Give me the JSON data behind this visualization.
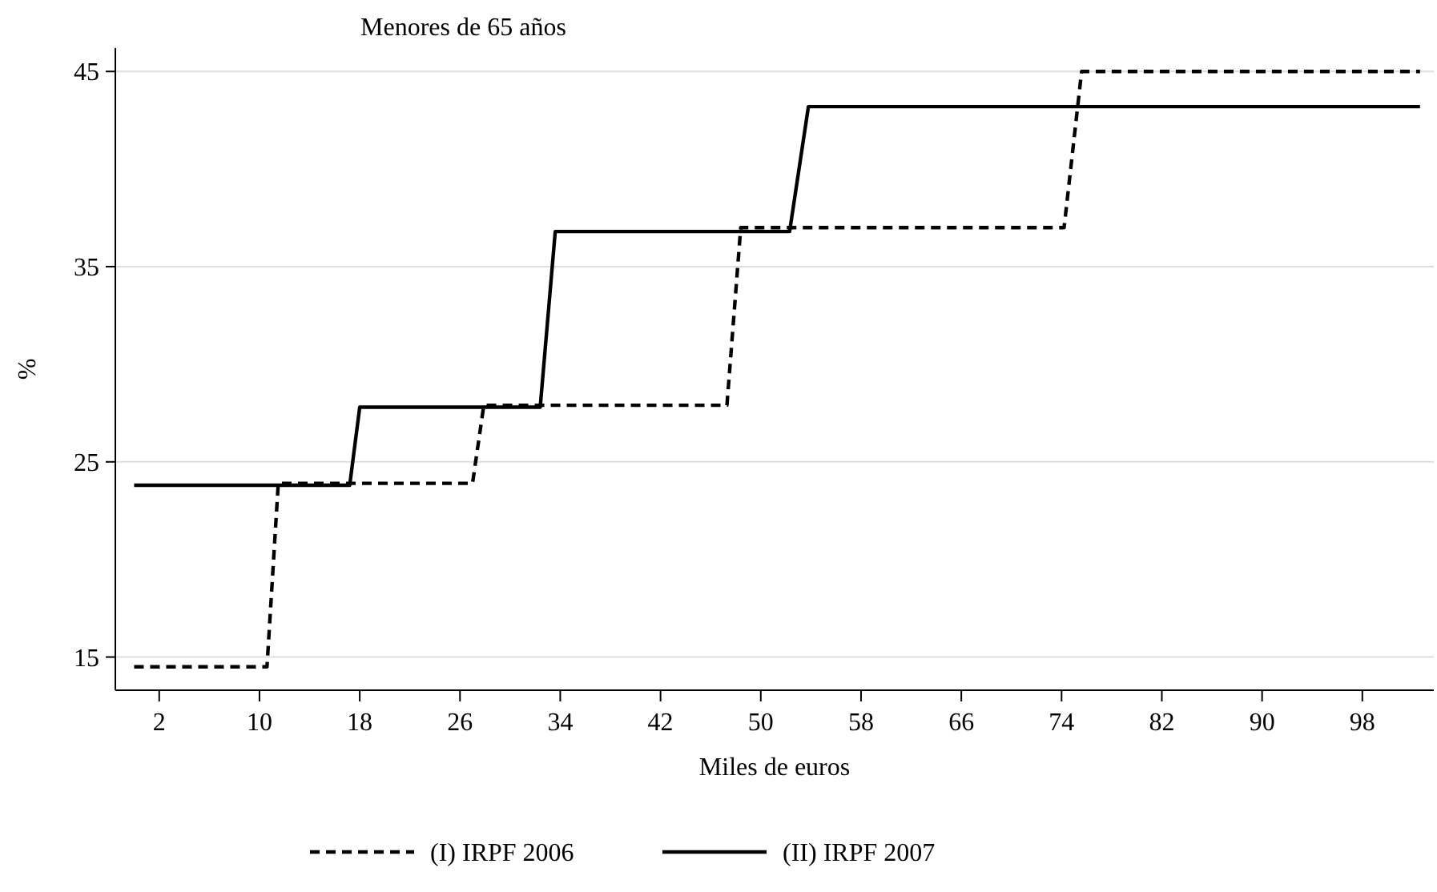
{
  "chart_data": {
    "type": "line",
    "title": "Menores de 65 años",
    "xlabel": "Miles de euros",
    "ylabel": "%",
    "xlim": [
      -1.5,
      103.7
    ],
    "ylim": [
      13.3,
      46.2
    ],
    "xticks": [
      2,
      10,
      18,
      26,
      34,
      42,
      50,
      58,
      66,
      74,
      82,
      90,
      98
    ],
    "yticks": [
      15,
      25,
      35,
      45
    ],
    "grid": "y",
    "legend": "bottom",
    "marker": "none",
    "series": [
      {
        "name": "(I) IRPF 2006",
        "color": "#000000",
        "line_style": "dashed",
        "x": [
          0,
          10.6,
          11.5,
          27.0,
          27.9,
          47.3,
          48.4,
          74.2,
          75.6,
          102.6
        ],
        "values": [
          14.5,
          14.5,
          23.9,
          23.9,
          27.9,
          27.9,
          37.0,
          37.0,
          45,
          45
        ]
      },
      {
        "name": "(II) IRPF 2007",
        "color": "#000000",
        "line_style": "solid",
        "x": [
          0,
          17.2,
          18.0,
          32.4,
          33.6,
          52.3,
          53.8,
          102.6
        ],
        "values": [
          23.8,
          23.8,
          27.8,
          27.8,
          36.8,
          36.8,
          43.2,
          43.2
        ]
      }
    ]
  }
}
